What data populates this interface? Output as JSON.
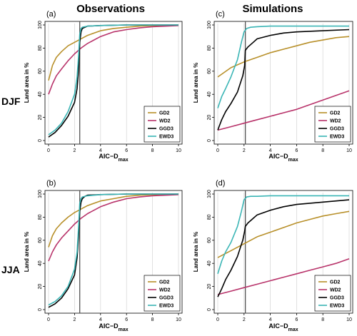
{
  "figure": {
    "col_titles": [
      "Observations",
      "Simulations"
    ],
    "row_labels": [
      "DJF",
      "JJA"
    ]
  },
  "colors": {
    "GD2": "#b8902a",
    "WD2": "#b8336a",
    "GGD3": "#000000",
    "EWD3": "#3ab5b5",
    "vline": "#555555",
    "grid": "#d9d9d9"
  },
  "chart_data": [
    {
      "panel_label": "(a)",
      "type": "line",
      "xlabel": "AIC−D",
      "xlabel_sub": "max",
      "ylabel": "Land area in %",
      "xlim": [
        0,
        10
      ],
      "ylim": [
        0,
        100
      ],
      "xticks": [
        "0",
        "2",
        "4",
        "6",
        "8",
        "10"
      ],
      "yticks": [
        "0",
        "20",
        "40",
        "60",
        "80",
        "100"
      ],
      "vline": 2.4,
      "legend_position": "bottom-right",
      "series": [
        {
          "name": "GD2",
          "x": [
            0,
            0.3,
            0.6,
            1,
            1.5,
            2,
            2.5,
            3,
            4,
            5,
            6,
            7,
            8,
            10
          ],
          "y": [
            52,
            65,
            72,
            77,
            82,
            85,
            88,
            91,
            95,
            97,
            98,
            99,
            99.5,
            100
          ]
        },
        {
          "name": "WD2",
          "x": [
            0,
            0.3,
            0.6,
            1,
            1.5,
            2,
            2.5,
            3,
            4,
            5,
            6,
            7,
            8,
            10
          ],
          "y": [
            40,
            49,
            56,
            62,
            69,
            75,
            80,
            84,
            90,
            94,
            96,
            97.5,
            98.5,
            99.5
          ]
        },
        {
          "name": "GGD3",
          "x": [
            0,
            0.5,
            1,
            1.5,
            2,
            2.2,
            2.3,
            2.4,
            2.5,
            2.6,
            2.8,
            3,
            4,
            6,
            10
          ],
          "y": [
            3,
            7,
            13,
            21,
            33,
            45,
            60,
            85,
            94,
            97,
            98,
            99,
            99.5,
            100,
            100
          ]
        },
        {
          "name": "EWD3",
          "x": [
            0,
            0.5,
            1,
            1.5,
            2,
            2.2,
            2.3,
            2.4,
            2.5,
            2.6,
            3,
            4,
            6,
            10
          ],
          "y": [
            5,
            9,
            15,
            25,
            40,
            55,
            72,
            92,
            97,
            98,
            99,
            99.5,
            100,
            100
          ]
        }
      ]
    },
    {
      "panel_label": "(c)",
      "type": "line",
      "xlabel": "AIC−D",
      "xlabel_sub": "max",
      "ylabel": "Land area in %",
      "xlim": [
        0,
        10
      ],
      "ylim": [
        0,
        100
      ],
      "xticks": [
        "0",
        "2",
        "4",
        "6",
        "8",
        "10"
      ],
      "yticks": [
        "0",
        "20",
        "40",
        "60",
        "80",
        "100"
      ],
      "vline": 2.1,
      "legend_position": "bottom-right",
      "series": [
        {
          "name": "GD2",
          "x": [
            0,
            0.5,
            1,
            2,
            3,
            4,
            5,
            6,
            7,
            8,
            9,
            10
          ],
          "y": [
            55,
            59,
            63,
            68,
            72,
            76,
            79,
            82,
            85,
            87,
            89,
            90
          ]
        },
        {
          "name": "WD2",
          "x": [
            0,
            1,
            2,
            3,
            4,
            5,
            6,
            7,
            8,
            9,
            10
          ],
          "y": [
            9,
            12,
            15,
            18,
            21,
            24,
            27,
            31,
            35,
            39,
            43
          ]
        },
        {
          "name": "GGD3",
          "x": [
            0,
            0.3,
            0.6,
            1,
            1.5,
            1.9,
            2.05,
            2.1,
            2.3,
            2.7,
            3,
            4,
            5,
            6,
            8,
            10
          ],
          "y": [
            9,
            18,
            25,
            32,
            42,
            56,
            65,
            78,
            81,
            85,
            88,
            91,
            93,
            94,
            95,
            96
          ]
        },
        {
          "name": "EWD3",
          "x": [
            0,
            0.3,
            0.6,
            1,
            1.5,
            1.8,
            2,
            2.2,
            2.5,
            3,
            4,
            6,
            10
          ],
          "y": [
            28,
            38,
            45,
            55,
            70,
            85,
            94,
            97,
            98,
            98.5,
            99,
            99,
            99
          ]
        }
      ]
    },
    {
      "panel_label": "(b)",
      "type": "line",
      "xlabel": "AIC−D",
      "xlabel_sub": "max",
      "ylabel": "Land area in %",
      "xlim": [
        0,
        10
      ],
      "ylim": [
        0,
        100
      ],
      "xticks": [
        "0",
        "2",
        "4",
        "6",
        "8",
        "10"
      ],
      "yticks": [
        "0",
        "20",
        "40",
        "60",
        "80",
        "100"
      ],
      "vline": 2.4,
      "legend_position": "bottom-right",
      "series": [
        {
          "name": "GD2",
          "x": [
            0,
            0.3,
            0.6,
            1,
            1.5,
            2,
            2.5,
            3,
            4,
            5,
            6,
            7,
            8,
            10
          ],
          "y": [
            54,
            64,
            70,
            75,
            80,
            84,
            87,
            90,
            94,
            96,
            98,
            99,
            99.5,
            100
          ]
        },
        {
          "name": "WD2",
          "x": [
            0,
            0.3,
            0.6,
            1,
            1.5,
            2,
            2.5,
            3,
            4,
            5,
            6,
            7,
            8,
            10
          ],
          "y": [
            42,
            50,
            56,
            62,
            68,
            74,
            79,
            83,
            89,
            93,
            96,
            97.5,
            98.5,
            99.5
          ]
        },
        {
          "name": "GGD3",
          "x": [
            0,
            0.5,
            1,
            1.5,
            2,
            2.2,
            2.3,
            2.4,
            2.5,
            2.6,
            2.8,
            3,
            4,
            6,
            10
          ],
          "y": [
            2,
            5,
            10,
            18,
            30,
            45,
            62,
            85,
            93,
            96,
            98,
            99,
            99.5,
            100,
            100
          ]
        },
        {
          "name": "EWD3",
          "x": [
            0,
            0.5,
            1,
            1.5,
            2,
            2.2,
            2.3,
            2.4,
            2.5,
            2.6,
            3,
            4,
            6,
            10
          ],
          "y": [
            4,
            7,
            12,
            20,
            35,
            50,
            70,
            92,
            96,
            97.5,
            98.5,
            99.5,
            100,
            100
          ]
        }
      ]
    },
    {
      "panel_label": "(d)",
      "type": "line",
      "xlabel": "AIC−D",
      "xlabel_sub": "max",
      "ylabel": "Land area in %",
      "xlim": [
        0,
        10
      ],
      "ylim": [
        0,
        100
      ],
      "xticks": [
        "0",
        "2",
        "4",
        "6",
        "8",
        "10"
      ],
      "yticks": [
        "0",
        "20",
        "40",
        "60",
        "80",
        "100"
      ],
      "vline": 2.1,
      "legend_position": "bottom-right",
      "series": [
        {
          "name": "GD2",
          "x": [
            0,
            0.5,
            1,
            2,
            3,
            4,
            5,
            6,
            7,
            8,
            9,
            10
          ],
          "y": [
            45,
            48,
            51,
            57,
            63,
            67,
            71,
            75,
            78,
            81,
            83,
            85
          ]
        },
        {
          "name": "WD2",
          "x": [
            0,
            1,
            2,
            3,
            4,
            5,
            6,
            7,
            8,
            9,
            10
          ],
          "y": [
            13,
            16,
            19,
            22,
            25,
            28,
            31,
            34,
            37,
            40,
            44
          ]
        },
        {
          "name": "GGD3",
          "x": [
            0,
            0.3,
            0.6,
            1,
            1.5,
            1.9,
            2.05,
            2.1,
            2.3,
            2.7,
            3,
            4,
            5,
            6,
            8,
            10
          ],
          "y": [
            11,
            18,
            26,
            34,
            46,
            60,
            68,
            72,
            75,
            79,
            82,
            86,
            89,
            91,
            93,
            95
          ]
        },
        {
          "name": "EWD3",
          "x": [
            0,
            0.3,
            0.6,
            1,
            1.5,
            1.8,
            2,
            2.2,
            2.5,
            3,
            4,
            6,
            10
          ],
          "y": [
            31,
            42,
            50,
            58,
            72,
            85,
            95,
            97.5,
            98,
            98,
            98.5,
            98.5,
            98.5
          ]
        }
      ]
    }
  ]
}
